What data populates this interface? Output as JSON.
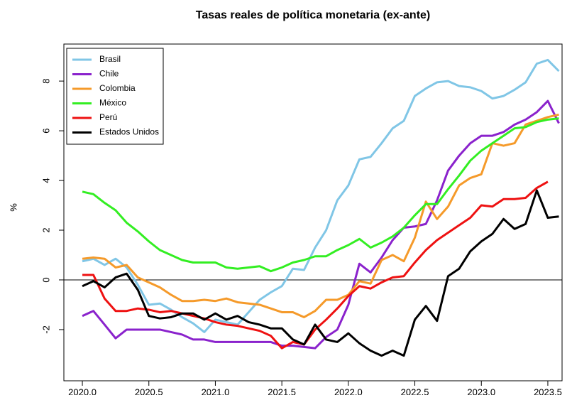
{
  "chart_data": {
    "type": "line",
    "title": "Tasas reales de política monetaria (ex-ante)",
    "y_label": "%",
    "x": [
      2020,
      2020.083,
      2020.167,
      2020.25,
      2020.333,
      2020.417,
      2020.5,
      2020.583,
      2020.667,
      2020.75,
      2020.833,
      2020.917,
      2021,
      2021.083,
      2021.167,
      2021.25,
      2021.333,
      2021.417,
      2021.5,
      2021.583,
      2021.667,
      2021.75,
      2021.833,
      2021.917,
      2022,
      2022.083,
      2022.167,
      2022.25,
      2022.333,
      2022.417,
      2022.5,
      2022.583,
      2022.667,
      2022.75,
      2022.833,
      2022.917,
      2023,
      2023.083,
      2023.167,
      2023.25,
      2023.333,
      2023.417,
      2023.5,
      2023.583
    ],
    "series": [
      {
        "name": "Brasil",
        "color": "#80c6e6",
        "values": [
          0.75,
          0.85,
          0.6,
          0.85,
          0.5,
          -0.2,
          -1.0,
          -0.95,
          -1.2,
          -1.5,
          -1.75,
          -2.1,
          -1.6,
          -1.7,
          -1.8,
          -1.3,
          -0.8,
          -0.5,
          -0.25,
          0.45,
          0.4,
          1.3,
          2.0,
          3.2,
          3.8,
          4.85,
          4.95,
          5.5,
          6.1,
          6.4,
          7.4,
          7.7,
          7.95,
          8.0,
          7.8,
          7.75,
          7.6,
          7.3,
          7.4,
          7.65,
          7.95,
          8.7,
          8.85,
          8.4
        ]
      },
      {
        "name": "Chile",
        "color": "#8a22cc",
        "values": [
          -1.45,
          -1.25,
          -1.8,
          -2.35,
          -2.0,
          -2.0,
          -2.0,
          -2.0,
          -2.1,
          -2.2,
          -2.4,
          -2.4,
          -2.5,
          -2.5,
          -2.5,
          -2.5,
          -2.5,
          -2.5,
          -2.65,
          -2.65,
          -2.7,
          -2.75,
          -2.3,
          -2.0,
          -1.0,
          0.65,
          0.3,
          0.9,
          1.6,
          2.1,
          2.15,
          2.25,
          3.2,
          4.4,
          5.0,
          5.5,
          5.8,
          5.8,
          5.95,
          6.25,
          6.45,
          6.75,
          7.2,
          6.3
        ]
      },
      {
        "name": "Colombia",
        "color": "#f59a2a",
        "values": [
          0.85,
          0.9,
          0.85,
          0.5,
          0.6,
          0.1,
          -0.1,
          -0.3,
          -0.6,
          -0.85,
          -0.85,
          -0.8,
          -0.85,
          -0.75,
          -0.9,
          -0.95,
          -1.0,
          -1.15,
          -1.3,
          -1.3,
          -1.5,
          -1.25,
          -0.8,
          -0.8,
          -0.6,
          -0.05,
          -0.15,
          0.8,
          1.0,
          0.75,
          1.7,
          3.15,
          2.45,
          2.95,
          3.8,
          4.1,
          4.25,
          5.5,
          5.4,
          5.5,
          6.25,
          6.4,
          6.55,
          6.65
        ]
      },
      {
        "name": "México",
        "color": "#33ee22",
        "values": [
          3.55,
          3.45,
          3.1,
          2.8,
          2.3,
          1.95,
          1.55,
          1.2,
          1.0,
          0.8,
          0.7,
          0.7,
          0.7,
          0.5,
          0.45,
          0.5,
          0.55,
          0.35,
          0.5,
          0.7,
          0.8,
          0.95,
          0.95,
          1.2,
          1.4,
          1.65,
          1.3,
          1.5,
          1.75,
          2.1,
          2.6,
          3.05,
          3.05,
          3.65,
          4.2,
          4.8,
          5.2,
          5.5,
          5.8,
          6.1,
          6.15,
          6.35,
          6.45,
          6.5
        ]
      },
      {
        "name": "Perú",
        "color": "#ee1111",
        "values": [
          0.2,
          0.2,
          -0.75,
          -1.25,
          -1.25,
          -1.15,
          -1.2,
          -1.3,
          -1.25,
          -1.35,
          -1.45,
          -1.55,
          -1.7,
          -1.8,
          -1.85,
          -1.95,
          -2.05,
          -2.25,
          -2.75,
          -2.5,
          -2.6,
          -2.0,
          -1.6,
          -1.15,
          -0.65,
          -0.25,
          -0.35,
          -0.1,
          0.1,
          0.15,
          0.7,
          1.2,
          1.6,
          1.9,
          2.2,
          2.5,
          3.0,
          2.95,
          3.25,
          3.25,
          3.3,
          3.7,
          3.95,
          null
        ]
      },
      {
        "name": "Estados Unidos",
        "color": "#000000",
        "values": [
          -0.25,
          -0.05,
          -0.3,
          0.1,
          0.25,
          -0.4,
          -1.45,
          -1.55,
          -1.5,
          -1.35,
          -1.35,
          -1.6,
          -1.35,
          -1.6,
          -1.45,
          -1.7,
          -1.8,
          -1.95,
          -1.95,
          -2.4,
          -2.6,
          -1.8,
          -2.4,
          -2.5,
          -2.15,
          -2.55,
          -2.85,
          -3.05,
          -2.85,
          -3.05,
          -1.6,
          -1.05,
          -1.65,
          0.15,
          0.45,
          1.15,
          1.55,
          1.85,
          2.45,
          2.05,
          2.25,
          3.6,
          2.5,
          2.55
        ]
      }
    ],
    "xlim": [
      2019.861,
      2023.607
    ],
    "ylim": [
      -4.06,
      9.49
    ],
    "xticks": [
      {
        "value": 2020,
        "label": "2020.0"
      },
      {
        "value": 2020.5,
        "label": "2020.5"
      },
      {
        "value": 2021,
        "label": "2021.0"
      },
      {
        "value": 2021.5,
        "label": "2021.5"
      },
      {
        "value": 2022,
        "label": "2022.0"
      },
      {
        "value": 2022.5,
        "label": "2022.5"
      },
      {
        "value": 2023,
        "label": "2023.0"
      },
      {
        "value": 2023.5,
        "label": "2023.5"
      }
    ],
    "yticks": [
      -2,
      0,
      2,
      4,
      6,
      8
    ],
    "hline": 0,
    "legend": "top-left"
  }
}
